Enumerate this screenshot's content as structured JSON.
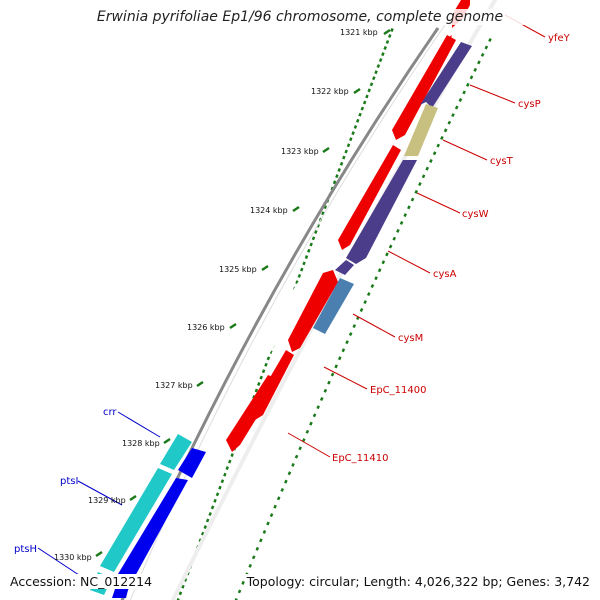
{
  "title": "Erwinia pyrifoliae Ep1/96 chromosome, complete genome",
  "footer": {
    "accession": "Accession: NC_012214",
    "summary": "Topology: circular; Length: 4,026,322 bp; Genes: 3,742"
  },
  "colors": {
    "forward_cds": "#ee0000",
    "reverse_cds": "#4b3d8a",
    "light_gene": "#c8c080",
    "steel_gene": "#4a7fb0",
    "cyan_gene": "#20c8c8",
    "blue_gene": "#0000ee",
    "tick": "#1a7a1a",
    "right_label": "#cc0000",
    "left_label": "#0000cc",
    "backbone": "#888888"
  },
  "scale_labels": [
    "1321 kbp",
    "1322 kbp",
    "1323 kbp",
    "1324 kbp",
    "1325 kbp",
    "1326 kbp",
    "1327 kbp",
    "1328 kbp",
    "1329 kbp",
    "1330 kbp"
  ],
  "gene_labels_right": [
    "yfeY",
    "cysP",
    "cysT",
    "cysW",
    "cysA",
    "cysM",
    "EpC_11400",
    "EpC_11410"
  ],
  "gene_labels_left": [
    "crr",
    "ptsI",
    "ptsH"
  ]
}
